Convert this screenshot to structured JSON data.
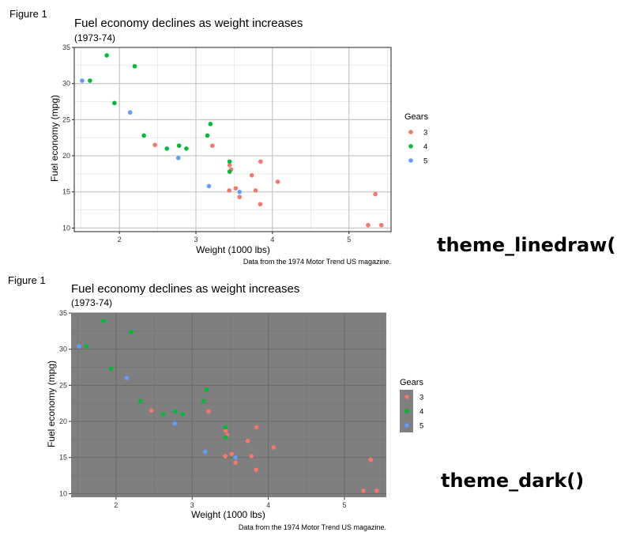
{
  "chart_data": [
    {
      "type": "scatter",
      "figure_label": "Figure 1",
      "theme_label": "theme_linedraw()",
      "title": "Fuel economy declines as weight increases",
      "subtitle": "(1973-74)",
      "xlabel": "Weight (1000 lbs)",
      "ylabel": "Fuel economy (mpg)",
      "caption": "Data from the 1974 Motor Trend US magazine.",
      "xlim": [
        1.41,
        5.55
      ],
      "ylim": [
        9.5,
        35.0
      ],
      "x_ticks": [
        2,
        3,
        4,
        5
      ],
      "y_ticks": [
        10,
        15,
        20,
        25,
        30,
        35
      ],
      "grid": true,
      "legend": {
        "title": "Gears",
        "placement": "right"
      },
      "series": [
        {
          "name": "3",
          "color": "#F8766D",
          "x": [
            3.215,
            3.44,
            2.465,
            3.46,
            3.57,
            4.07,
            3.73,
            3.78,
            5.25,
            5.424,
            5.345,
            3.52,
            3.435,
            3.84,
            3.845
          ],
          "y": [
            21.4,
            18.7,
            21.5,
            18.1,
            14.3,
            16.4,
            17.3,
            15.2,
            10.4,
            10.4,
            14.7,
            15.5,
            15.2,
            13.3,
            19.2
          ]
        },
        {
          "name": "4",
          "color": "#00BA38",
          "x": [
            2.62,
            2.875,
            2.32,
            3.19,
            3.15,
            3.44,
            3.44,
            2.2,
            1.615,
            1.835,
            1.935,
            2.78
          ],
          "y": [
            21.0,
            21.0,
            22.8,
            24.4,
            22.8,
            19.2,
            17.8,
            32.4,
            30.4,
            33.9,
            27.3,
            21.4
          ]
        },
        {
          "name": "5",
          "color": "#619CFF",
          "x": [
            2.14,
            1.513,
            3.17,
            2.77,
            3.57
          ],
          "y": [
            26.0,
            30.4,
            15.8,
            19.7,
            15.0
          ]
        }
      ]
    },
    {
      "type": "scatter",
      "figure_label": "Figure 1",
      "theme_label": "theme_dark()",
      "title": "Fuel economy declines as weight increases",
      "subtitle": "(1973-74)",
      "xlabel": "Weight (1000 lbs)",
      "ylabel": "Fuel economy (mpg)",
      "caption": "Data from the 1974 Motor Trend US magazine.",
      "xlim": [
        1.41,
        5.55
      ],
      "ylim": [
        9.5,
        35.0
      ],
      "x_ticks": [
        2,
        3,
        4,
        5
      ],
      "y_ticks": [
        10,
        15,
        20,
        25,
        30,
        35
      ],
      "grid": true,
      "panel_color": "#7f7f7f",
      "legend": {
        "title": "Gears",
        "placement": "right"
      },
      "series": [
        {
          "name": "3",
          "color": "#F8766D",
          "x": [
            3.215,
            3.44,
            2.465,
            3.46,
            3.57,
            4.07,
            3.73,
            3.78,
            5.25,
            5.424,
            5.345,
            3.52,
            3.435,
            3.84,
            3.845
          ],
          "y": [
            21.4,
            18.7,
            21.5,
            18.1,
            14.3,
            16.4,
            17.3,
            15.2,
            10.4,
            10.4,
            14.7,
            15.5,
            15.2,
            13.3,
            19.2
          ]
        },
        {
          "name": "4",
          "color": "#00BA38",
          "x": [
            2.62,
            2.875,
            2.32,
            3.19,
            3.15,
            3.44,
            3.44,
            2.2,
            1.615,
            1.835,
            1.935,
            2.78
          ],
          "y": [
            21.0,
            21.0,
            22.8,
            24.4,
            22.8,
            19.2,
            17.8,
            32.4,
            30.4,
            33.9,
            27.3,
            21.4
          ]
        },
        {
          "name": "5",
          "color": "#619CFF",
          "x": [
            2.14,
            1.513,
            3.17,
            2.77,
            3.57
          ],
          "y": [
            26.0,
            30.4,
            15.8,
            19.7,
            15.0
          ]
        }
      ]
    }
  ]
}
